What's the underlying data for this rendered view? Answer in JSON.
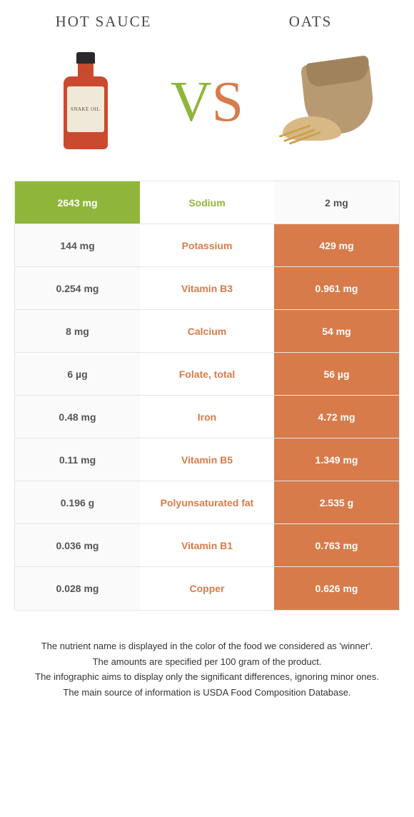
{
  "header": {
    "left_title": "HOT SAUCE",
    "right_title": "OATS",
    "vs_v": "V",
    "vs_s": "S",
    "bottle_label": "SNAKE OIL"
  },
  "colors": {
    "left_accent": "#8fb63a",
    "right_accent": "#d87b4a",
    "row_alt_bg": "#fafafa",
    "border": "#e5e5e5",
    "text": "#333333"
  },
  "table": {
    "rows": [
      {
        "left": "2643 mg",
        "label": "Sodium",
        "right": "2 mg",
        "winner": "left"
      },
      {
        "left": "144 mg",
        "label": "Potassium",
        "right": "429 mg",
        "winner": "right"
      },
      {
        "left": "0.254 mg",
        "label": "Vitamin B3",
        "right": "0.961 mg",
        "winner": "right"
      },
      {
        "left": "8 mg",
        "label": "Calcium",
        "right": "54 mg",
        "winner": "right"
      },
      {
        "left": "6 µg",
        "label": "Folate, total",
        "right": "56 µg",
        "winner": "right"
      },
      {
        "left": "0.48 mg",
        "label": "Iron",
        "right": "4.72 mg",
        "winner": "right"
      },
      {
        "left": "0.11 mg",
        "label": "Vitamin B5",
        "right": "1.349 mg",
        "winner": "right"
      },
      {
        "left": "0.196 g",
        "label": "Polyunsaturated fat",
        "right": "2.535 g",
        "winner": "right"
      },
      {
        "left": "0.036 mg",
        "label": "Vitamin B1",
        "right": "0.763 mg",
        "winner": "right"
      },
      {
        "left": "0.028 mg",
        "label": "Copper",
        "right": "0.626 mg",
        "winner": "right"
      }
    ]
  },
  "footnotes": [
    "The nutrient name is displayed in the color of the food we considered as 'winner'.",
    "The amounts are specified per 100 gram of the product.",
    "The infographic aims to display only the significant differences, ignoring minor ones.",
    "The main source of information is USDA Food Composition Database."
  ]
}
